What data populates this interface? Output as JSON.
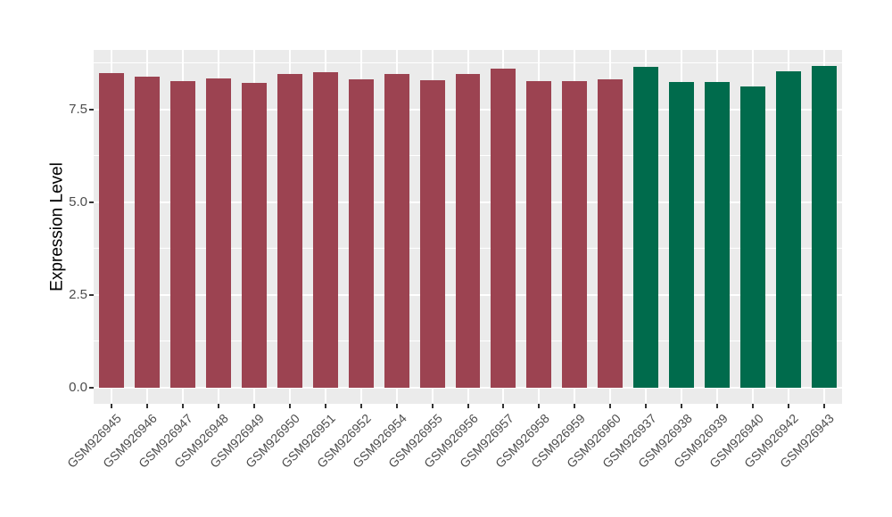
{
  "chart_data": {
    "type": "bar",
    "title": "",
    "xlabel": "",
    "ylabel": "Expression Level",
    "categories": [
      "GSM926945",
      "GSM926946",
      "GSM926947",
      "GSM926948",
      "GSM926949",
      "GSM926950",
      "GSM926951",
      "GSM926952",
      "GSM926954",
      "GSM926955",
      "GSM926956",
      "GSM926957",
      "GSM926958",
      "GSM926959",
      "GSM926960",
      "GSM926937",
      "GSM926938",
      "GSM926939",
      "GSM926940",
      "GSM926942",
      "GSM926943"
    ],
    "values": [
      8.48,
      8.38,
      8.26,
      8.33,
      8.21,
      8.44,
      8.49,
      8.3,
      8.45,
      8.29,
      8.44,
      8.6,
      8.25,
      8.27,
      8.3,
      8.64,
      8.23,
      8.23,
      8.12,
      8.52,
      8.66
    ],
    "groups": [
      "group1",
      "group1",
      "group1",
      "group1",
      "group1",
      "group1",
      "group1",
      "group1",
      "group1",
      "group1",
      "group1",
      "group1",
      "group1",
      "group1",
      "group1",
      "group2",
      "group2",
      "group2",
      "group2",
      "group2",
      "group2"
    ],
    "group_colors": {
      "group1": "#9C4351",
      "group2": "#006B4C"
    },
    "ylim": [
      0,
      9.1
    ],
    "y_expand_units": 0.44,
    "yticks": [
      0,
      2.5,
      5,
      7.5
    ],
    "ytick_labels": [
      "0.0",
      "2.5",
      "5.0",
      "7.5"
    ],
    "yticks_minor": [
      1.25,
      3.75,
      6.25,
      8.75
    ],
    "bar_width_fraction": 0.7,
    "grid": true,
    "legend": "none",
    "panel_background": "#EBEBEB",
    "gridline_color": "#FFFFFF",
    "axis_text_color": "#4d4d4d"
  }
}
